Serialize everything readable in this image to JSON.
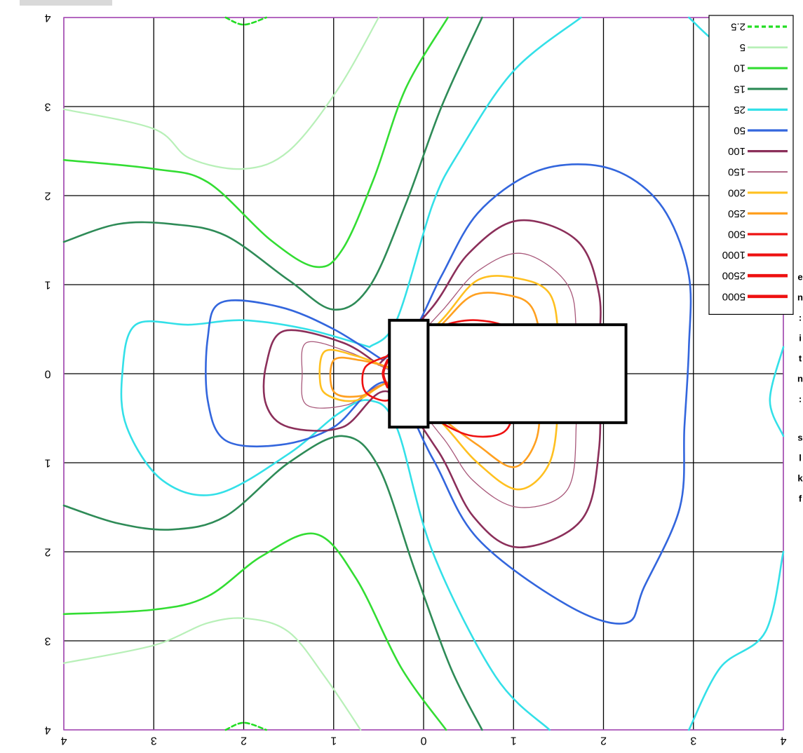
{
  "chart_data": {
    "type": "contour",
    "title": "",
    "xlabel": "",
    "ylabel": "",
    "xlim": [
      -4,
      4
    ],
    "ylim": [
      -4,
      4
    ],
    "grid": true,
    "mirrored_labels": true,
    "legend_placement": "top-right",
    "x_ticks": [
      "4",
      "3",
      "2",
      "1",
      "0",
      "1",
      "2",
      "3",
      "4"
    ],
    "y_ticks": [
      "4",
      "3",
      "2",
      "1",
      "0",
      "1",
      "2",
      "3",
      "4"
    ],
    "levels": [
      {
        "name": "2.5",
        "color": "#22dd22",
        "dashed": true
      },
      {
        "name": "5",
        "color": "#b8f0b8"
      },
      {
        "name": "10",
        "color": "#33dd33"
      },
      {
        "name": "15",
        "color": "#2e8b57"
      },
      {
        "name": "25",
        "color": "#33e0e8"
      },
      {
        "name": "50",
        "color": "#3366dd"
      },
      {
        "name": "100",
        "color": "#8b2f5a"
      },
      {
        "name": "150",
        "color": "#a8587a"
      },
      {
        "name": "200",
        "color": "#ffc020"
      },
      {
        "name": "250",
        "color": "#ffa020"
      },
      {
        "name": "500",
        "color": "#ee1111"
      },
      {
        "name": "1000",
        "color": "#ee1111"
      },
      {
        "name": "2500",
        "color": "#ee1111"
      },
      {
        "name": "5000",
        "color": "#ee1111"
      }
    ],
    "series": [
      {
        "name": "2.5",
        "lines": [
          [
            [
              -2.2,
              4
            ],
            [
              -2.0,
              3.92
            ],
            [
              -1.75,
              4
            ]
          ],
          [
            [
              -2.2,
              -4
            ],
            [
              -2.0,
              -3.92
            ],
            [
              -1.75,
              -4
            ]
          ]
        ]
      },
      {
        "name": "5",
        "lines": [
          [
            [
              -4,
              2.97
            ],
            [
              -3.0,
              2.75
            ],
            [
              -2.6,
              2.42
            ],
            [
              -2.0,
              2.3
            ],
            [
              -1.5,
              2.5
            ],
            [
              -0.95,
              3.2
            ],
            [
              -0.5,
              4
            ]
          ],
          [
            [
              -4,
              -3.25
            ],
            [
              -3.0,
              -3.05
            ],
            [
              -2.4,
              -2.8
            ],
            [
              -1.95,
              -2.75
            ],
            [
              -1.5,
              -2.9
            ],
            [
              -1.1,
              -3.4
            ],
            [
              -0.7,
              -4
            ]
          ]
        ]
      },
      {
        "name": "10",
        "lines": [
          [
            [
              -4,
              2.4
            ],
            [
              -3.0,
              2.3
            ],
            [
              -2.4,
              2.15
            ],
            [
              -1.7,
              1.5
            ],
            [
              -1.2,
              1.2
            ],
            [
              -0.9,
              1.4
            ],
            [
              -0.55,
              2.2
            ],
            [
              -0.2,
              3.2
            ],
            [
              0.27,
              4
            ]
          ],
          [
            [
              -4,
              -2.7
            ],
            [
              -3.0,
              -2.65
            ],
            [
              -2.4,
              -2.5
            ],
            [
              -1.8,
              -2.05
            ],
            [
              -1.2,
              -1.8
            ],
            [
              -0.75,
              -2.3
            ],
            [
              -0.25,
              -3.3
            ],
            [
              0.25,
              -4
            ]
          ]
        ]
      },
      {
        "name": "15",
        "lines": [
          [
            [
              -4,
              1.48
            ],
            [
              -3.4,
              1.68
            ],
            [
              -2.8,
              1.68
            ],
            [
              -2.2,
              1.55
            ],
            [
              -1.5,
              1.05
            ],
            [
              -1.0,
              0.72
            ],
            [
              -0.6,
              0.98
            ],
            [
              -0.2,
              1.9
            ],
            [
              0.2,
              3.0
            ],
            [
              0.65,
              4
            ]
          ],
          [
            [
              -4,
              -1.48
            ],
            [
              -3.4,
              -1.68
            ],
            [
              -2.8,
              -1.75
            ],
            [
              -2.2,
              -1.6
            ],
            [
              -1.5,
              -1.0
            ],
            [
              -0.9,
              -0.7
            ],
            [
              -0.5,
              -1.05
            ],
            [
              -0.1,
              -2.2
            ],
            [
              0.3,
              -3.3
            ],
            [
              0.65,
              -4
            ]
          ]
        ]
      },
      {
        "name": "25",
        "lines": [
          [
            [
              -0.6,
              0.3
            ],
            [
              -1.3,
              0.5
            ],
            [
              -2.0,
              0.6
            ],
            [
              -2.6,
              0.55
            ],
            [
              -3.2,
              0.55
            ],
            [
              -3.35,
              0
            ],
            [
              -3.3,
              -0.6
            ],
            [
              -2.9,
              -1.2
            ],
            [
              -2.3,
              -1.35
            ],
            [
              -1.5,
              -0.9
            ],
            [
              -0.95,
              -0.45
            ],
            [
              -0.6,
              -0.3
            ],
            [
              -0.3,
              -0.6
            ],
            [
              0.1,
              -2.0
            ],
            [
              0.8,
              -3.4
            ],
            [
              1.4,
              -4
            ]
          ],
          [
            [
              -0.6,
              0.3
            ],
            [
              -0.3,
              0.6
            ],
            [
              0.1,
              1.9
            ],
            [
              0.4,
              2.5
            ],
            [
              1.0,
              3.4
            ],
            [
              1.75,
              4
            ]
          ],
          [
            [
              2.95,
              4
            ],
            [
              3.3,
              3.7
            ],
            [
              3.65,
              3.7
            ],
            [
              4,
              3.4
            ]
          ],
          [
            [
              2.95,
              -4
            ],
            [
              3.3,
              -3.3
            ],
            [
              3.8,
              -2.9
            ],
            [
              4,
              -2.0
            ]
          ],
          [
            [
              4,
              0.3
            ],
            [
              3.85,
              -0.3
            ],
            [
              4,
              -0.7
            ]
          ]
        ]
      },
      {
        "name": "50",
        "lines": [
          [
            [
              -0.45,
              0.15
            ],
            [
              -1.0,
              0.5
            ],
            [
              -1.6,
              0.75
            ],
            [
              -2.25,
              0.8
            ],
            [
              -2.4,
              0.4
            ],
            [
              -2.4,
              -0.3
            ],
            [
              -2.2,
              -0.75
            ],
            [
              -1.6,
              -0.8
            ],
            [
              -1.0,
              -0.6
            ],
            [
              -0.4,
              -0.1
            ],
            [
              0.1,
              -0.95
            ],
            [
              0.6,
              -1.85
            ],
            [
              1.6,
              -2.6
            ],
            [
              2.25,
              -2.8
            ],
            [
              2.45,
              -2.4
            ],
            [
              2.85,
              -1.5
            ],
            [
              2.9,
              -0.6
            ],
            [
              2.95,
              0.3
            ],
            [
              2.95,
              1.1
            ],
            [
              2.7,
              1.8
            ],
            [
              2.3,
              2.2
            ],
            [
              1.8,
              2.35
            ],
            [
              1.2,
              2.25
            ],
            [
              0.6,
              1.8
            ],
            [
              0.2,
              1.1
            ],
            [
              -0.1,
              0.5
            ],
            [
              -0.45,
              0.15
            ]
          ]
        ]
      },
      {
        "name": "100",
        "lines": [
          [
            [
              -0.5,
              0.1
            ],
            [
              -0.9,
              0.35
            ],
            [
              -1.55,
              0.48
            ],
            [
              -1.75,
              0.1
            ],
            [
              -1.75,
              -0.35
            ],
            [
              -1.5,
              -0.6
            ],
            [
              -0.9,
              -0.6
            ],
            [
              -0.4,
              -0.2
            ],
            [
              0.15,
              -0.85
            ],
            [
              0.55,
              -1.6
            ],
            [
              1.05,
              -1.95
            ],
            [
              1.75,
              -1.65
            ],
            [
              1.95,
              -0.85
            ],
            [
              1.95,
              0.2
            ],
            [
              1.95,
              0.9
            ],
            [
              1.7,
              1.5
            ],
            [
              1.05,
              1.72
            ],
            [
              0.5,
              1.35
            ],
            [
              0.1,
              0.75
            ],
            [
              -0.5,
              0.1
            ]
          ]
        ]
      },
      {
        "name": "150",
        "lines": [
          [
            [
              -0.4,
              0.05
            ],
            [
              -0.85,
              0.25
            ],
            [
              -1.3,
              0.35
            ],
            [
              -1.35,
              0.0
            ],
            [
              -1.3,
              -0.35
            ],
            [
              -0.85,
              -0.35
            ],
            [
              -0.35,
              -0.12
            ],
            [
              0.2,
              -0.7
            ],
            [
              0.55,
              -1.2
            ],
            [
              1.05,
              -1.5
            ],
            [
              1.6,
              -1.3
            ],
            [
              1.7,
              -0.5
            ],
            [
              1.7,
              0.4
            ],
            [
              1.6,
              1.0
            ],
            [
              1.1,
              1.35
            ],
            [
              0.6,
              1.15
            ],
            [
              0.2,
              0.7
            ],
            [
              -0.4,
              0.05
            ]
          ]
        ]
      },
      {
        "name": "200",
        "lines": [
          [
            [
              -0.35,
              0.05
            ],
            [
              -0.75,
              0.2
            ],
            [
              -1.1,
              0.25
            ],
            [
              -1.15,
              -0.1
            ],
            [
              -1.05,
              -0.25
            ],
            [
              -0.75,
              -0.3
            ],
            [
              -0.3,
              -0.1
            ],
            [
              0.2,
              -0.55
            ],
            [
              0.6,
              -1.0
            ],
            [
              1.05,
              -1.3
            ],
            [
              1.4,
              -1.0
            ],
            [
              1.5,
              -0.3
            ],
            [
              1.5,
              0.4
            ],
            [
              1.4,
              0.9
            ],
            [
              1.05,
              1.07
            ],
            [
              0.6,
              1.05
            ],
            [
              0.2,
              0.6
            ],
            [
              -0.35,
              0.05
            ]
          ]
        ]
      },
      {
        "name": "250",
        "lines": [
          [
            [
              -0.3,
              0.05
            ],
            [
              -0.7,
              0.15
            ],
            [
              -1.0,
              0.15
            ],
            [
              -1.0,
              -0.2
            ],
            [
              -0.7,
              -0.25
            ],
            [
              -0.3,
              -0.1
            ],
            [
              0.2,
              -0.5
            ],
            [
              0.6,
              -0.8
            ],
            [
              1.0,
              -1.05
            ],
            [
              1.25,
              -0.75
            ],
            [
              1.3,
              -0.2
            ],
            [
              1.3,
              0.35
            ],
            [
              1.2,
              0.75
            ],
            [
              0.95,
              0.88
            ],
            [
              0.55,
              0.88
            ],
            [
              0.2,
              0.55
            ],
            [
              -0.3,
              0.05
            ]
          ]
        ]
      },
      {
        "name": "500",
        "lines": [
          [
            [
              -0.4,
              0.2
            ],
            [
              -0.65,
              0.07
            ],
            [
              -0.65,
              -0.2
            ],
            [
              -0.4,
              -0.3
            ],
            [
              -0.3,
              -0.1
            ]
          ],
          [
            [
              0.0,
              -0.35
            ],
            [
              0.2,
              -0.55
            ],
            [
              0.55,
              -0.7
            ],
            [
              0.9,
              -0.65
            ],
            [
              1.0,
              -0.35
            ],
            [
              1.0,
              0.2
            ],
            [
              0.95,
              0.5
            ],
            [
              0.6,
              0.6
            ],
            [
              0.25,
              0.55
            ],
            [
              0.0,
              0.4
            ]
          ]
        ]
      },
      {
        "name": "1000",
        "lines": [
          [
            [
              0.0,
              -0.4
            ],
            [
              0.2,
              -0.45
            ],
            [
              0.5,
              -0.5
            ],
            [
              0.7,
              -0.45
            ],
            [
              0.7,
              -0.3
            ]
          ],
          [
            [
              0.0,
              0.45
            ],
            [
              0.2,
              0.5
            ],
            [
              0.45,
              0.55
            ],
            [
              0.65,
              0.48
            ],
            [
              0.7,
              0.3
            ]
          ]
        ]
      },
      {
        "name": "2500",
        "lines": [
          [
            [
              -0.4,
              0.15
            ],
            [
              -0.45,
              0.0
            ],
            [
              -0.4,
              -0.15
            ]
          ]
        ]
      },
      {
        "name": "5000",
        "lines": []
      }
    ],
    "annotations": [
      {
        "type": "rectangle",
        "x0": -0.38,
        "x1": 0.05,
        "y0": -0.6,
        "y1": 0.6
      },
      {
        "type": "rectangle",
        "x0": 0.05,
        "x1": 2.25,
        "y0": -0.55,
        "y1": 0.55
      }
    ]
  },
  "page": {
    "right_edge_cut_text": [
      "e",
      "n",
      ":",
      "i",
      "t",
      "n",
      ":",
      "s",
      "l",
      "k",
      "f"
    ]
  }
}
